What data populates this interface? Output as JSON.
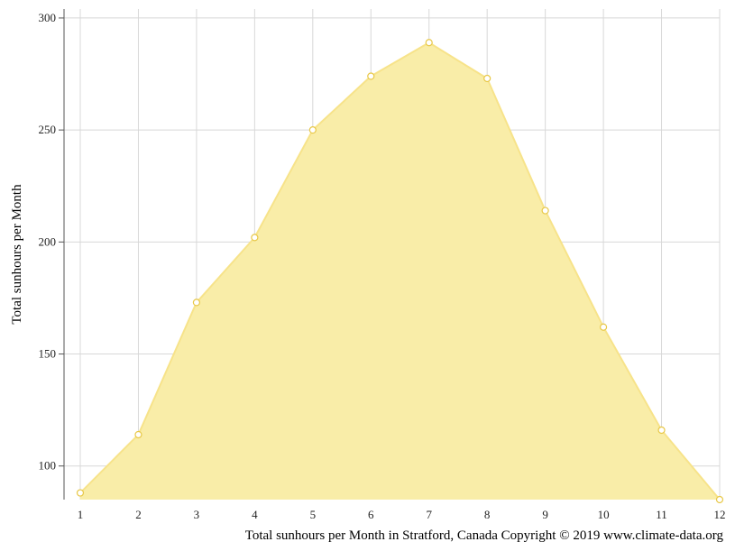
{
  "chart_data": {
    "type": "area",
    "ylabel": "Total sunhours per Month",
    "caption": "Total sunhours per Month in Stratford, Canada Copyright © 2019 www.climate-data.org",
    "x": [
      "1",
      "2",
      "3",
      "4",
      "5",
      "6",
      "7",
      "8",
      "9",
      "10",
      "11",
      "12"
    ],
    "series": [
      {
        "values": [
          88,
          114,
          173,
          202,
          250,
          274,
          289,
          273,
          214,
          162,
          116,
          85
        ]
      }
    ],
    "yticks": [
      100,
      150,
      200,
      250,
      300
    ],
    "ylim": [
      85,
      304
    ],
    "grid": true,
    "colors": {
      "fill": "#f9eda8",
      "line": "#f7e38a",
      "marker_stroke": "#e8c848",
      "grid": "#d8d8d8",
      "axis": "#555555"
    }
  }
}
